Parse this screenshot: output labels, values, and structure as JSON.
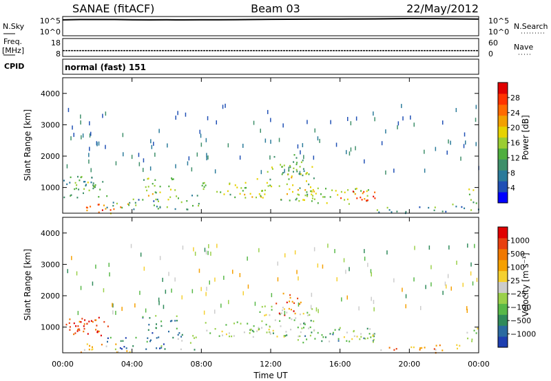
{
  "header": {
    "station": "SANAE (fitACF)",
    "beam": "Beam 03",
    "date": "22/May/2012"
  },
  "chart_data": [
    {
      "type": "line",
      "panel": "noise",
      "left_label": "N.Sky",
      "right_label": "N.Search",
      "left_ticks": [
        "10^5",
        "10^0"
      ],
      "right_ticks": [
        "10^5",
        "10^0"
      ],
      "series": [
        {
          "values": [
            4.6,
            4.7,
            4.7,
            4.7,
            4.65,
            4.6,
            4.62,
            4.6,
            4.62,
            4.65,
            4.66,
            4.7,
            4.78,
            4.8,
            4.82,
            4.83,
            4.85,
            4.87,
            4.9,
            4.95,
            5.0,
            4.98,
            4.95,
            4.9,
            4.85
          ]
        }
      ]
    },
    {
      "type": "line",
      "panel": "frequency",
      "left_label": "Freq.",
      "left_unit": "[MHz]",
      "right_label": "Nave",
      "left_ticks": [
        "18",
        "8"
      ],
      "right_ticks": [
        "60",
        "0"
      ],
      "series": [
        {
          "values": [
            10.9,
            10.9,
            10.9,
            10.9,
            10.9,
            10.9,
            10.9,
            10.9,
            10.9,
            10.9,
            10.9,
            10.9,
            10.9
          ]
        }
      ]
    },
    {
      "type": "table",
      "panel": "cpid",
      "label": "CPID",
      "text": "normal (fast) 151"
    },
    {
      "type": "heatmap",
      "panel": "power",
      "ylabel": "Slant Range [km]",
      "yticks": [
        "1000",
        "2000",
        "3000",
        "4000"
      ],
      "ylim": [
        180,
        4500
      ],
      "xlim": [
        0,
        24
      ],
      "colorbar_label": "Power [dB]",
      "colorbar_ticks": [
        "28",
        "24",
        "20",
        "16",
        "12",
        "8",
        "4"
      ],
      "colorbar_range": [
        0,
        32
      ],
      "colors": [
        "#0000ff",
        "#1f4fb5",
        "#2a7a9a",
        "#3e8f6a",
        "#4fae3e",
        "#9acd32",
        "#e6d200",
        "#f2a000",
        "#ff6a00",
        "#ff3300",
        "#e00000"
      ]
    },
    {
      "type": "heatmap",
      "panel": "velocity",
      "ylabel": "Slant Range [km]",
      "yticks": [
        "1000",
        "2000",
        "3000",
        "4000"
      ],
      "ylim": [
        180,
        4500
      ],
      "xlim": [
        0,
        24
      ],
      "xticks": [
        "00:00",
        "04:00",
        "08:00",
        "12:00",
        "16:00",
        "20:00",
        "00:00"
      ],
      "xlabel": "Time UT",
      "colorbar_label": "Velocity [m s⁻¹]",
      "colorbar_ticks": [
        "1000",
        "500",
        "100",
        "25",
        "−25",
        "−100",
        "−500",
        "−1000"
      ],
      "colors": [
        "#1e3fb0",
        "#2a6aa0",
        "#2f8a5a",
        "#58b848",
        "#9ad04a",
        "#cccccc",
        "#f5d030",
        "#f5a000",
        "#f07800",
        "#e84010",
        "#e00000"
      ]
    }
  ]
}
